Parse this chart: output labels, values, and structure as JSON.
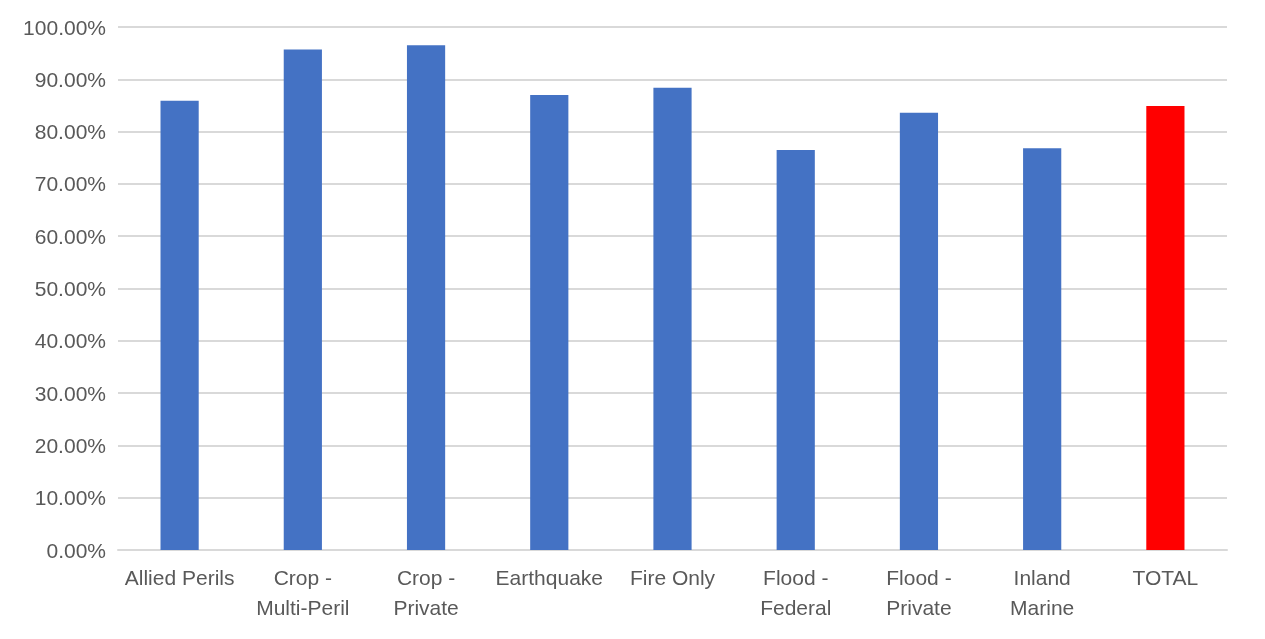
{
  "chart_data": {
    "type": "bar",
    "categories": [
      "Allied Perils",
      "Crop -\nMulti-Peril",
      "Crop -\nPrivate",
      "Earthquake",
      "Fire Only",
      "Flood -\nFederal",
      "Flood -\nPrivate",
      "Inland\nMarine",
      "TOTAL"
    ],
    "values": [
      85.9,
      95.7,
      96.5,
      87.0,
      88.4,
      76.5,
      83.6,
      76.8,
      84.9
    ],
    "colors": [
      "#4472c4",
      "#4472c4",
      "#4472c4",
      "#4472c4",
      "#4472c4",
      "#4472c4",
      "#4472c4",
      "#4472c4",
      "#ff0000"
    ],
    "ylim": [
      0,
      100
    ],
    "yticks": [
      {
        "value": 0,
        "label": "0.00%"
      },
      {
        "value": 10,
        "label": "10.00%"
      },
      {
        "value": 20,
        "label": "20.00%"
      },
      {
        "value": 30,
        "label": "30.00%"
      },
      {
        "value": 40,
        "label": "40.00%"
      },
      {
        "value": 50,
        "label": "50.00%"
      },
      {
        "value": 60,
        "label": "60.00%"
      },
      {
        "value": 70,
        "label": "70.00%"
      },
      {
        "value": 80,
        "label": "80.00%"
      },
      {
        "value": 90,
        "label": "90.00%"
      },
      {
        "value": 100,
        "label": "100.00%"
      }
    ],
    "grid": "y"
  }
}
